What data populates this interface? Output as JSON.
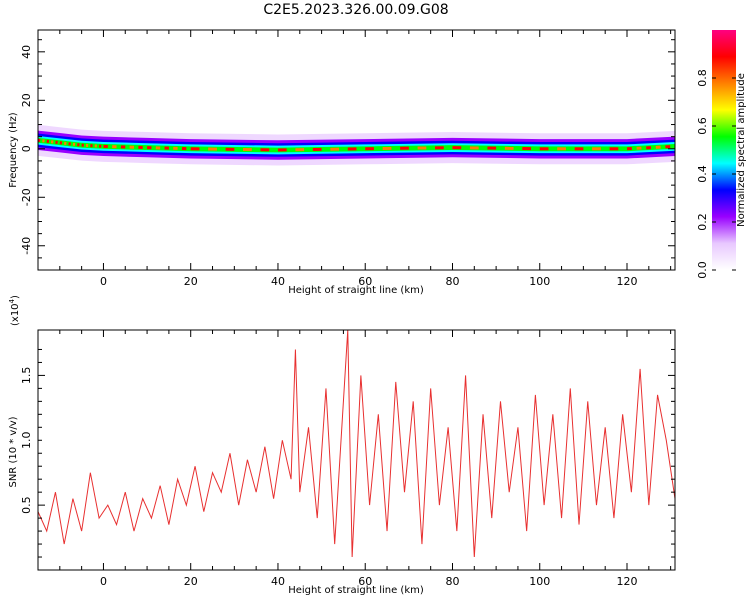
{
  "title": "C2E5.2023.326.00.09.G08",
  "chart_data": [
    {
      "type": "heatmap",
      "name": "spectrogram",
      "xlabel": "Height of straight line (km)",
      "ylabel": "Frequency (Hz)",
      "xlim": [
        -15,
        131
      ],
      "ylim": [
        -50,
        49
      ],
      "xticks": [
        0,
        20,
        40,
        60,
        80,
        100,
        120
      ],
      "yticks": [
        -40,
        -20,
        0,
        20,
        40
      ],
      "colorbar": {
        "label": "Normalized spectral amplitude",
        "range": [
          0.0,
          1.0
        ],
        "ticks": [
          "0.0",
          "0.2",
          "0.4",
          "0.6",
          "0.8"
        ],
        "colors": [
          "#ffffff",
          "#e8c8ff",
          "#9900ff",
          "#0000ff",
          "#00ffff",
          "#00ff00",
          "#ffff00",
          "#ff8000",
          "#ff0000",
          "#ff0080"
        ]
      },
      "band_center_hz": [
        [
          -15,
          3.5
        ],
        [
          -10,
          2.5
        ],
        [
          -5,
          1.5
        ],
        [
          0,
          1
        ],
        [
          10,
          0.5
        ],
        [
          20,
          0
        ],
        [
          40,
          -0.5
        ],
        [
          60,
          0
        ],
        [
          80,
          0.5
        ],
        [
          100,
          0
        ],
        [
          120,
          0
        ],
        [
          131,
          1
        ]
      ],
      "band_halfwidth_hz": 4
    },
    {
      "type": "line",
      "name": "snr",
      "xlabel": "Height of straight line (km)",
      "ylabel": "SNR (10 * v/v)",
      "y_multiplier_label": "(x10",
      "y_multiplier_exponent": "4",
      "y_multiplier_close": ")",
      "xlim": [
        -15,
        131
      ],
      "ylim": [
        0.0,
        1.85
      ],
      "xticks": [
        0,
        20,
        40,
        60,
        80,
        100,
        120
      ],
      "yticks": [
        "0.5",
        "1.0",
        "1.5"
      ],
      "color": "#e83030",
      "x": [
        -15,
        -13,
        -11,
        -9,
        -7,
        -5,
        -3,
        -1,
        1,
        3,
        5,
        7,
        9,
        11,
        13,
        15,
        17,
        19,
        21,
        23,
        25,
        27,
        29,
        31,
        33,
        35,
        37,
        39,
        41,
        43,
        44,
        45,
        47,
        49,
        51,
        53,
        55,
        56,
        57,
        59,
        61,
        63,
        65,
        67,
        69,
        71,
        73,
        75,
        77,
        79,
        81,
        83,
        85,
        87,
        89,
        91,
        93,
        95,
        97,
        99,
        101,
        103,
        105,
        107,
        109,
        111,
        113,
        115,
        117,
        119,
        121,
        123,
        125,
        127,
        129,
        131
      ],
      "values": [
        0.45,
        0.3,
        0.6,
        0.2,
        0.55,
        0.3,
        0.75,
        0.4,
        0.5,
        0.35,
        0.6,
        0.3,
        0.55,
        0.4,
        0.65,
        0.35,
        0.7,
        0.5,
        0.8,
        0.45,
        0.75,
        0.6,
        0.9,
        0.5,
        0.85,
        0.6,
        0.95,
        0.55,
        1.0,
        0.7,
        1.7,
        0.6,
        1.1,
        0.4,
        1.4,
        0.2,
        1.3,
        1.85,
        0.1,
        1.5,
        0.5,
        1.2,
        0.3,
        1.45,
        0.6,
        1.3,
        0.2,
        1.4,
        0.5,
        1.1,
        0.3,
        1.5,
        0.1,
        1.2,
        0.4,
        1.3,
        0.6,
        1.1,
        0.3,
        1.35,
        0.5,
        1.2,
        0.4,
        1.4,
        0.35,
        1.3,
        0.5,
        1.1,
        0.4,
        1.2,
        0.6,
        1.55,
        0.5,
        1.35,
        1.0,
        0.55
      ]
    }
  ]
}
